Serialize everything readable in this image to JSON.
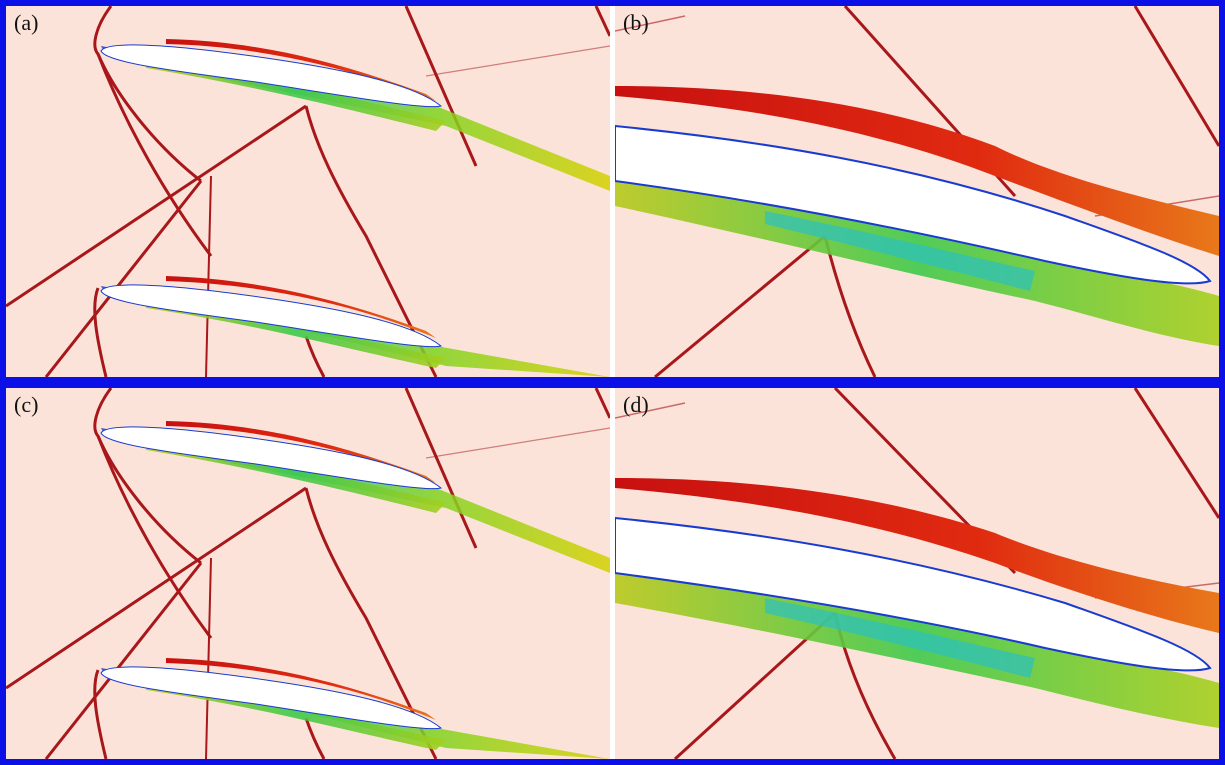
{
  "panels": {
    "a": {
      "label": "(a)"
    },
    "b": {
      "label": "(b)"
    },
    "c": {
      "label": "(c)"
    },
    "d": {
      "label": "(d)"
    }
  },
  "colors": {
    "frame": "#1a1df0",
    "background": "#fbe3da",
    "shock": "#a8171a",
    "airfoil": "#ffffff"
  }
}
